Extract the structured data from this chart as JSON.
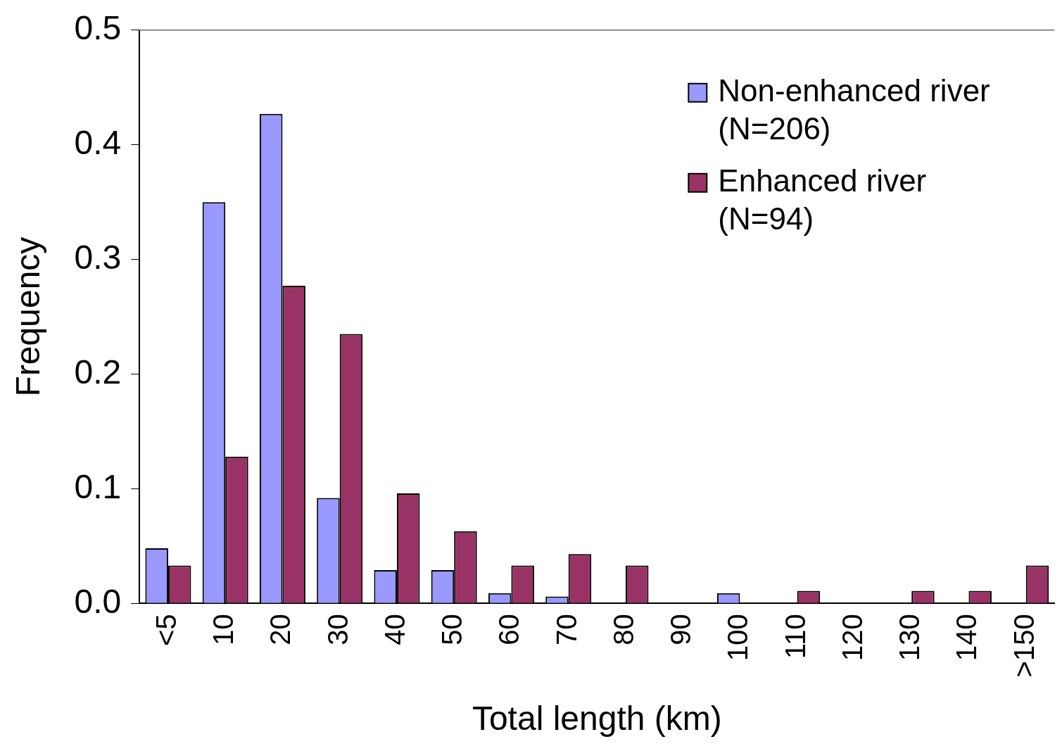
{
  "chart_data": {
    "type": "bar",
    "xlabel": "Total length (km)",
    "ylabel": "Frequency",
    "categories": [
      "<5",
      "10",
      "20",
      "30",
      "40",
      "50",
      "60",
      "70",
      "80",
      "90",
      "100",
      "110",
      "120",
      "130",
      "140",
      ">150"
    ],
    "series": [
      {
        "name": "Non-enhanced river (N=206)",
        "color": "#9999ff",
        "values": [
          0.048,
          0.35,
          0.427,
          0.092,
          0.029,
          0.029,
          0.009,
          0.006,
          0,
          0,
          0.009,
          0,
          0,
          0,
          0,
          0
        ]
      },
      {
        "name": "Enhanced river (N=94)",
        "color": "#993366",
        "values": [
          0.033,
          0.128,
          0.277,
          0.235,
          0.096,
          0.063,
          0.033,
          0.043,
          0.033,
          0,
          0,
          0.011,
          0,
          0.011,
          0.011,
          0.033
        ]
      }
    ],
    "ylim": [
      0,
      0.5
    ],
    "yticks": [
      {
        "value": 0,
        "label": "0.0"
      },
      0.1,
      0.2,
      0.3,
      0.4,
      0.5
    ],
    "grid": false,
    "legend": "top right"
  }
}
